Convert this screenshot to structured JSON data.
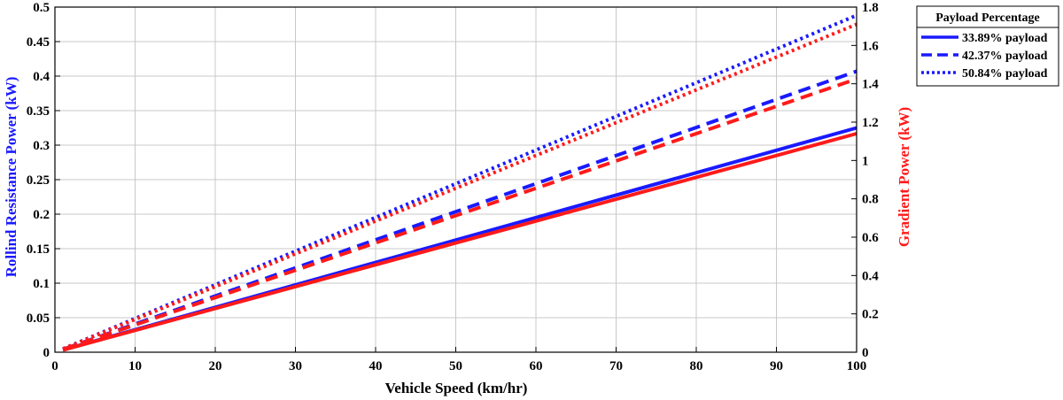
{
  "chart_data": {
    "type": "line",
    "xlabel": "Vehicle Speed (km/hr)",
    "ylabel_left": "Rollind Resistance Power (kW)",
    "ylabel_right": "Gradient Power (kW)",
    "xlim": [
      0,
      100
    ],
    "ylim_left": [
      0,
      0.5
    ],
    "ylim_right": [
      0,
      1.8
    ],
    "x_ticks": [
      "0",
      "10",
      "20",
      "30",
      "40",
      "50",
      "60",
      "70",
      "80",
      "90",
      "100"
    ],
    "y_left_ticks": [
      "0",
      "0.05",
      "0.1",
      "0.15",
      "0.2",
      "0.25",
      "0.3",
      "0.35",
      "0.4",
      "0.45",
      "0.5"
    ],
    "y_right_ticks": [
      "0",
      "0.2",
      "0.4",
      "0.6",
      "0.8",
      "1",
      "1.2",
      "1.4",
      "1.6",
      "1.8"
    ],
    "grid": true,
    "legend_title": "Payload Percentage",
    "legend_position": "outside-right",
    "colors": {
      "left_axis": "#1a1aff",
      "right_axis": "#ff1a1a",
      "grid": "#c8c8c8"
    },
    "x": [
      1,
      100
    ],
    "series": [
      {
        "name": "33.89% payload",
        "axis": "left",
        "style": "solid",
        "color": "#1a1aff",
        "values": [
          0.0033,
          0.325
        ]
      },
      {
        "name": "42.37% payload",
        "axis": "left",
        "style": "dashed",
        "color": "#1a1aff",
        "values": [
          0.0041,
          0.407
        ]
      },
      {
        "name": "50.84% payload",
        "axis": "left",
        "style": "dotted",
        "color": "#1a1aff",
        "values": [
          0.0049,
          0.488
        ]
      },
      {
        "name": "33.89% payload",
        "axis": "right",
        "style": "solid",
        "color": "#ff1a1a",
        "values": [
          0.0114,
          1.14
        ]
      },
      {
        "name": "42.37% payload",
        "axis": "right",
        "style": "dashed",
        "color": "#ff1a1a",
        "values": [
          0.0143,
          1.425
        ]
      },
      {
        "name": "50.84% payload",
        "axis": "right",
        "style": "dotted",
        "color": "#ff1a1a",
        "values": [
          0.0171,
          1.71
        ]
      }
    ]
  }
}
